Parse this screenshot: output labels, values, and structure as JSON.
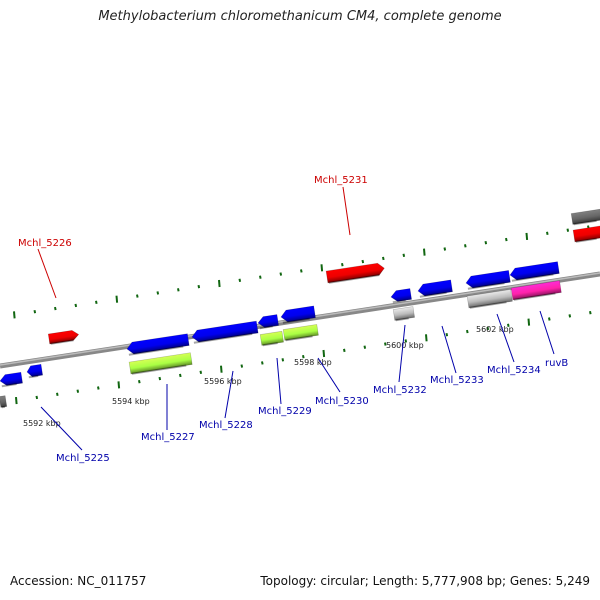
{
  "header": {
    "title": "Methylobacterium chloromethanicum CM4, complete genome"
  },
  "footer": {
    "accession": "Accession: NC_011757",
    "summary": "Topology: circular; Length: 5,777,908 bp; Genes: 5,249"
  },
  "colors": {
    "forward_gene": "#0000ee",
    "reverse_gene": "#ee0000",
    "rna": "#aaff44",
    "pseudo": "#bbbbbb",
    "highlight": "#ff22aa",
    "backbone": "#888888",
    "tick": "#116611",
    "label_forward": "#0000aa",
    "label_reverse": "#cc0000"
  },
  "scale_labels": [
    "5592 kbp",
    "5594 kbp",
    "5596 kbp",
    "5598 kbp",
    "5600 kbp",
    "5602 kbp"
  ],
  "gene_labels": [
    {
      "text": "Mchl_5226",
      "strand": "reverse"
    },
    {
      "text": "Mchl_5231",
      "strand": "reverse"
    },
    {
      "text": "Mchl_5225",
      "strand": "forward"
    },
    {
      "text": "Mchl_5227",
      "strand": "forward"
    },
    {
      "text": "Mchl_5228",
      "strand": "forward"
    },
    {
      "text": "Mchl_5229",
      "strand": "forward"
    },
    {
      "text": "Mchl_5230",
      "strand": "forward"
    },
    {
      "text": "Mchl_5232",
      "strand": "forward"
    },
    {
      "text": "Mchl_5233",
      "strand": "forward"
    },
    {
      "text": "Mchl_5234",
      "strand": "forward"
    },
    {
      "text": "ruvB",
      "strand": "forward"
    }
  ]
}
